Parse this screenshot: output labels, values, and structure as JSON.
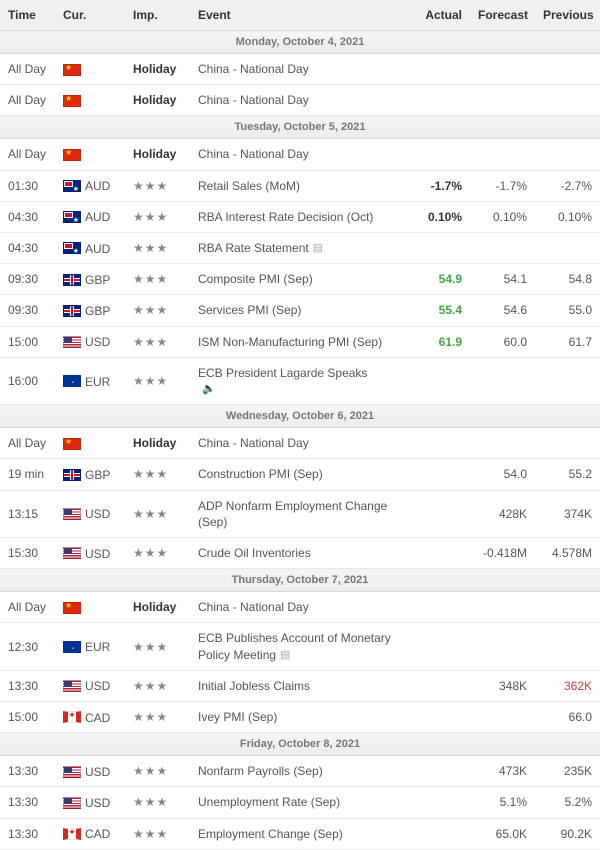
{
  "columns": {
    "time": "Time",
    "cur": "Cur.",
    "imp": "Imp.",
    "event": "Event",
    "actual": "Actual",
    "forecast": "Forecast",
    "previous": "Previous"
  },
  "flag_colors": {
    "CN": "#de2910",
    "AU": "#00247d",
    "GB": "#00247d",
    "US": "#b22234",
    "EU": "#003399",
    "CA": "#d52b1e"
  },
  "value_colors": {
    "default": "#555",
    "bold": "#333",
    "better": "#3fa83f",
    "worse": "#d23c3c"
  },
  "days": [
    {
      "label": "Monday, October 4, 2021",
      "rows": [
        {
          "time": "All Day",
          "cc": "CN",
          "code": "",
          "imp": "holiday",
          "event": "China - National Day"
        },
        {
          "time": "All Day",
          "cc": "CN",
          "code": "",
          "imp": "holiday",
          "event": "China - National Day"
        }
      ]
    },
    {
      "label": "Tuesday, October 5, 2021",
      "rows": [
        {
          "time": "All Day",
          "cc": "CN",
          "code": "",
          "imp": "holiday",
          "event": "China - National Day"
        },
        {
          "time": "01:30",
          "cc": "AU",
          "code": "AUD",
          "imp": 3,
          "event": "Retail Sales (MoM)",
          "actual": "-1.7%",
          "actual_style": "bold",
          "forecast": "-1.7%",
          "previous": "-2.7%"
        },
        {
          "time": "04:30",
          "cc": "AU",
          "code": "AUD",
          "imp": 3,
          "event": "RBA Interest Rate Decision (Oct)",
          "actual": "0.10%",
          "actual_style": "bold",
          "forecast": "0.10%",
          "previous": "0.10%"
        },
        {
          "time": "04:30",
          "cc": "AU",
          "code": "AUD",
          "imp": 3,
          "event": "RBA Rate Statement",
          "icon": "doc"
        },
        {
          "time": "09:30",
          "cc": "GB",
          "code": "GBP",
          "imp": 3,
          "event": "Composite PMI (Sep)",
          "actual": "54.9",
          "actual_style": "better",
          "forecast": "54.1",
          "previous": "54.8"
        },
        {
          "time": "09:30",
          "cc": "GB",
          "code": "GBP",
          "imp": 3,
          "event": "Services PMI (Sep)",
          "actual": "55.4",
          "actual_style": "better",
          "forecast": "54.6",
          "previous": "55.0"
        },
        {
          "time": "15:00",
          "cc": "US",
          "code": "USD",
          "imp": 3,
          "event": "ISM Non-Manufacturing PMI (Sep)",
          "actual": "61.9",
          "actual_style": "better",
          "forecast": "60.0",
          "previous": "61.7"
        },
        {
          "time": "16:00",
          "cc": "EU",
          "code": "EUR",
          "imp": 3,
          "event": "ECB President Lagarde Speaks",
          "icon": "speech"
        }
      ]
    },
    {
      "label": "Wednesday, October 6, 2021",
      "rows": [
        {
          "time": "All Day",
          "cc": "CN",
          "code": "",
          "imp": "holiday",
          "event": "China - National Day"
        },
        {
          "time": "19 min",
          "cc": "GB",
          "code": "GBP",
          "imp": 3,
          "event": "Construction PMI (Sep)",
          "forecast": "54.0",
          "previous": "55.2"
        },
        {
          "time": "13:15",
          "cc": "US",
          "code": "USD",
          "imp": 3,
          "event": "ADP Nonfarm Employment Change (Sep)",
          "forecast": "428K",
          "previous": "374K"
        },
        {
          "time": "15:30",
          "cc": "US",
          "code": "USD",
          "imp": 3,
          "event": "Crude Oil Inventories",
          "forecast": "-0.418M",
          "previous": "4.578M"
        }
      ]
    },
    {
      "label": "Thursday, October 7, 2021",
      "rows": [
        {
          "time": "All Day",
          "cc": "CN",
          "code": "",
          "imp": "holiday",
          "event": "China - National Day"
        },
        {
          "time": "12:30",
          "cc": "EU",
          "code": "EUR",
          "imp": 3,
          "event": "ECB Publishes Account of Monetary Policy Meeting",
          "icon": "doc"
        },
        {
          "time": "13:30",
          "cc": "US",
          "code": "USD",
          "imp": 3,
          "event": "Initial Jobless Claims",
          "forecast": "348K",
          "previous": "362K",
          "previous_style": "worse"
        },
        {
          "time": "15:00",
          "cc": "CA",
          "code": "CAD",
          "imp": 3,
          "event": "Ivey PMI (Sep)",
          "previous": "66.0"
        }
      ]
    },
    {
      "label": "Friday, October 8, 2021",
      "rows": [
        {
          "time": "13:30",
          "cc": "US",
          "code": "USD",
          "imp": 3,
          "event": "Nonfarm Payrolls (Sep)",
          "forecast": "473K",
          "previous": "235K"
        },
        {
          "time": "13:30",
          "cc": "US",
          "code": "USD",
          "imp": 3,
          "event": "Unemployment Rate (Sep)",
          "forecast": "5.1%",
          "previous": "5.2%"
        },
        {
          "time": "13:30",
          "cc": "CA",
          "code": "CAD",
          "imp": 3,
          "event": "Employment Change (Sep)",
          "forecast": "65.0K",
          "previous": "90.2K"
        }
      ]
    }
  ]
}
